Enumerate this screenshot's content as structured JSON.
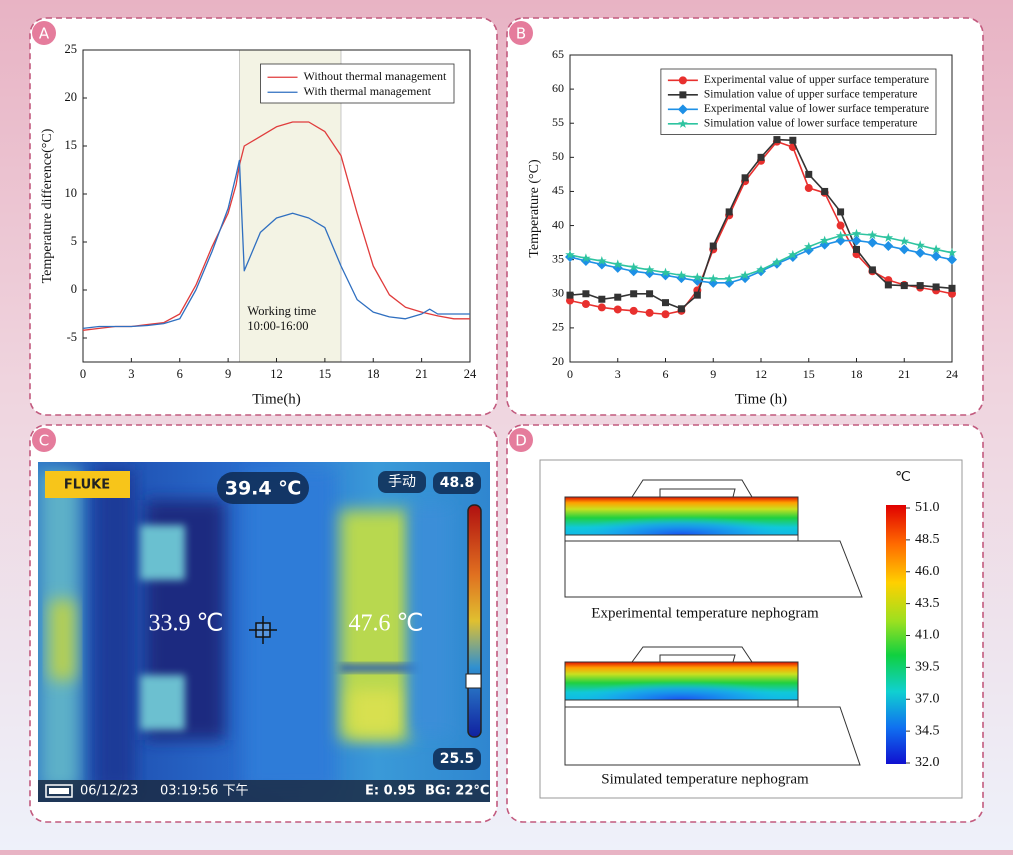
{
  "panels": [
    "A",
    "B",
    "C",
    "D"
  ],
  "chart_data": [
    {
      "type": "line",
      "xlabel": "Time(h)",
      "ylabel": "Temperature difference(°C)",
      "x": [
        0,
        1,
        2,
        3,
        4,
        5,
        6,
        7,
        8,
        9,
        9.5,
        9.7,
        10,
        11,
        12,
        13,
        14,
        15,
        16,
        17,
        18,
        19,
        20,
        21,
        21.5,
        22,
        23,
        24
      ],
      "series": [
        {
          "name": "Without thermal management",
          "color": "#e03c3c",
          "values": [
            -4.2,
            -4,
            -3.8,
            -3.8,
            -3.6,
            -3.4,
            -2.5,
            0.5,
            4.5,
            8,
            11,
            13,
            15,
            16,
            17,
            17.5,
            17.5,
            16.5,
            14,
            8,
            2.5,
            -0.5,
            -1.8,
            -2.3,
            -2.5,
            -2.7,
            -3,
            -3
          ]
        },
        {
          "name": "With thermal management",
          "color": "#2f6fc0",
          "values": [
            -4,
            -3.8,
            -3.8,
            -3.8,
            -3.7,
            -3.5,
            -3,
            0,
            4,
            8.5,
            12,
            13.5,
            2,
            6,
            7.5,
            8,
            7.5,
            6.5,
            2.5,
            -1,
            -2.3,
            -2.8,
            -3,
            -2.5,
            -2,
            -2.5,
            -2.5,
            -2.5
          ]
        }
      ],
      "shade": [
        9.7,
        16
      ],
      "annotation": [
        "Working time",
        "10:00-16:00"
      ],
      "xlim": [
        0,
        24
      ],
      "xticks": [
        0,
        3,
        6,
        9,
        12,
        15,
        18,
        21,
        24
      ],
      "ylim": [
        -7.5,
        25
      ],
      "yticks": [
        -5,
        0,
        5,
        10,
        15,
        20,
        25
      ],
      "legend": "upper right",
      "line_width": 1.3
    },
    {
      "type": "line",
      "xlabel": "Time (h)",
      "ylabel": "Temperature (°C)",
      "x": [
        0,
        1,
        2,
        3,
        4,
        5,
        6,
        7,
        8,
        9,
        10,
        11,
        12,
        13,
        14,
        15,
        16,
        17,
        18,
        19,
        20,
        21,
        22,
        23,
        24
      ],
      "series": [
        {
          "name": "Experimental value of upper surface temperature",
          "color": "#e8302e",
          "marker": "circle",
          "values": [
            29,
            28.5,
            28,
            27.7,
            27.5,
            27.2,
            27,
            27.5,
            30.5,
            36.5,
            41.5,
            46.5,
            49.5,
            52.3,
            51.5,
            45.5,
            44.8,
            40,
            35.8,
            33.3,
            32,
            31.3,
            30.9,
            30.5,
            30
          ]
        },
        {
          "name": "Simulation value of upper surface temperature",
          "color": "#333333",
          "marker": "square",
          "values": [
            29.8,
            30,
            29.2,
            29.5,
            30,
            30,
            28.7,
            27.8,
            29.8,
            37,
            42,
            47,
            50,
            52.6,
            52.5,
            47.5,
            45,
            42,
            36.5,
            33.5,
            31.3,
            31.2,
            31.2,
            31,
            30.8
          ]
        },
        {
          "name": "Experimental value of lower surface temperature",
          "color": "#1e90e6",
          "marker": "diamond",
          "values": [
            35.4,
            34.8,
            34.3,
            33.8,
            33.3,
            33,
            32.7,
            32.3,
            31.9,
            31.6,
            31.6,
            32.3,
            33.3,
            34.4,
            35.4,
            36.4,
            37.2,
            37.8,
            37.8,
            37.5,
            37,
            36.5,
            36,
            35.5,
            35
          ]
        },
        {
          "name": "Simulation value of lower surface temperature",
          "color": "#2ec4a0",
          "marker": "star",
          "values": [
            35.7,
            35.2,
            34.8,
            34.3,
            33.9,
            33.5,
            33.1,
            32.7,
            32.4,
            32.2,
            32.2,
            32.7,
            33.5,
            34.6,
            35.7,
            36.9,
            37.8,
            38.5,
            38.8,
            38.6,
            38.2,
            37.7,
            37.1,
            36.5,
            36
          ]
        }
      ],
      "xlim": [
        0,
        24
      ],
      "xticks": [
        0,
        3,
        6,
        9,
        12,
        15,
        18,
        21,
        24
      ],
      "ylim": [
        20,
        65
      ],
      "yticks": [
        20,
        25,
        30,
        35,
        40,
        45,
        50,
        55,
        60,
        65
      ],
      "legend": "upper right",
      "line_width": 1.6
    }
  ],
  "thermal_image": {
    "brand": "FLUKE",
    "center_temp": "39.4 ℃",
    "mode": "手动",
    "scale_max": "48.8",
    "scale_min": "25.5",
    "spot_left": "33.9 ℃",
    "spot_right": "47.6 ℃",
    "date": "06/12/23",
    "time": "03:19:56 下午",
    "emissivity": "E: 0.95",
    "background": "BG: 22°C"
  },
  "nephogram": {
    "unit": "℃",
    "scale_labels": [
      "51.0",
      "48.5",
      "46.0",
      "43.5",
      "41.0",
      "39.5",
      "37.0",
      "34.5",
      "32.0"
    ],
    "captions": [
      "Experimental temperature nephogram",
      "Simulated temperature nephogram"
    ]
  }
}
